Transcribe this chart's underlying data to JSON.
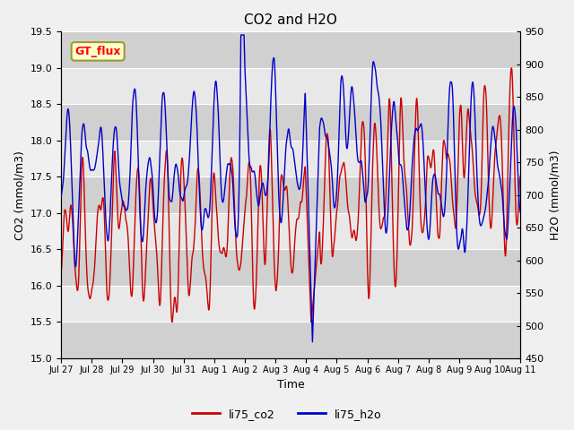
{
  "title": "CO2 and H2O",
  "xlabel": "Time",
  "ylabel_left": "CO2 (mmol/m3)",
  "ylabel_right": "H2O (mmol/m3)",
  "ylim_left": [
    15.0,
    19.5
  ],
  "ylim_right": [
    450,
    950
  ],
  "yticks_left": [
    15.0,
    15.5,
    16.0,
    16.5,
    17.0,
    17.5,
    18.0,
    18.5,
    19.0,
    19.5
  ],
  "yticks_right": [
    450,
    500,
    550,
    600,
    650,
    700,
    750,
    800,
    850,
    900,
    950
  ],
  "xtick_labels": [
    "Jul 27",
    "Jul 28",
    "Jul 29",
    "Jul 30",
    "Jul 31",
    "Aug 1",
    "Aug 2",
    "Aug 3",
    "Aug 4",
    "Aug 5",
    "Aug 6",
    "Aug 7",
    "Aug 8",
    "Aug 9",
    "Aug 10",
    "Aug 11"
  ],
  "legend_labels": [
    "li75_co2",
    "li75_h2o"
  ],
  "co2_color": "#cc0000",
  "h2o_color": "#0000cc",
  "plot_bg_color": "#e8e8e8",
  "stripe_color": "#d0d0d0",
  "gt_flux_label": "GT_flux",
  "gt_flux_bg": "#ffffcc",
  "gt_flux_border": "#999933",
  "linewidth": 1.0,
  "grid_color": "#ffffff",
  "n_days": 16,
  "n_pts": 2304
}
